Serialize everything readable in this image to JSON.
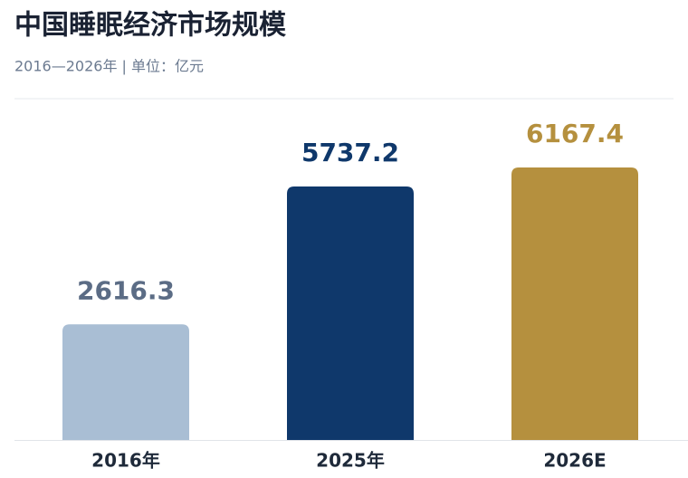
{
  "chart_data": {
    "type": "bar",
    "title": "中国睡眠经济市场规模",
    "subtitle": "2016—2026年  |  单位：亿元",
    "categories": [
      "2016年",
      "2025年",
      "2026E"
    ],
    "values": [
      2616.3,
      5737.2,
      6167.4
    ],
    "colors": [
      "#a9bed4",
      "#0f386b",
      "#b5903e"
    ],
    "label_colors": [
      "#5b6c85",
      "#0f386b",
      "#b5903e"
    ]
  }
}
